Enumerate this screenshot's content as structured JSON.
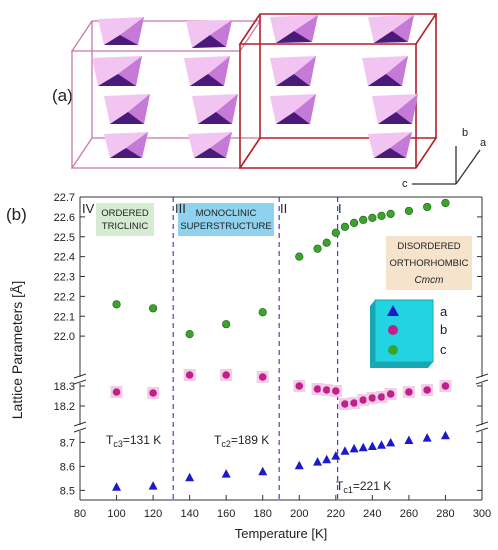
{
  "panel_a": {
    "label": "(a)",
    "axis_labels": {
      "b": "b",
      "a": "a",
      "c": "c"
    },
    "colors": {
      "box_left": "#c878a8",
      "box_right": "#b02028",
      "poly_light": "#f2c4f2",
      "poly_mid": "#c47ad6",
      "poly_dark": "#4a1a7a"
    }
  },
  "panel_b": {
    "label": "(b)"
  },
  "chart_data": {
    "type": "scatter",
    "xlabel": "Temperature [K]",
    "ylabel": "Lattice Parameters [Å]",
    "xlim": [
      80,
      300
    ],
    "x_ticks": [
      "80",
      "100",
      "120",
      "140",
      "160",
      "180",
      "200",
      "220",
      "240",
      "260",
      "280",
      "300"
    ],
    "segments": [
      {
        "id": "c",
        "ylim": [
          21.9,
          22.7
        ],
        "ticks": [
          "22.0",
          "22.1",
          "22.2",
          "22.3",
          "22.4",
          "22.5",
          "22.6",
          "22.7"
        ]
      },
      {
        "id": "b",
        "ylim": [
          18.15,
          18.42
        ],
        "ticks": [
          "18.2",
          "18.3"
        ]
      },
      {
        "id": "a",
        "ylim": [
          8.46,
          8.76
        ],
        "ticks": [
          "8.5",
          "8.6",
          "8.7"
        ]
      }
    ],
    "series": [
      {
        "name": "a",
        "color": "#1a1acc",
        "marker": "triangle",
        "segment": "a",
        "x": [
          100,
          120,
          140,
          160,
          180,
          200,
          210,
          215,
          220,
          225,
          230,
          235,
          240,
          245,
          250,
          260,
          270,
          280
        ],
        "y": [
          8.515,
          8.52,
          8.555,
          8.57,
          8.58,
          8.605,
          8.62,
          8.63,
          8.645,
          8.665,
          8.675,
          8.68,
          8.685,
          8.69,
          8.7,
          8.71,
          8.72,
          8.73
        ]
      },
      {
        "name": "b",
        "color": "#c0208a",
        "marker": "sphere",
        "segment": "b",
        "x": [
          100,
          120,
          140,
          160,
          180,
          200,
          210,
          215,
          220,
          225,
          230,
          235,
          240,
          245,
          250,
          260,
          270,
          280
        ],
        "y": [
          18.27,
          18.265,
          18.355,
          18.355,
          18.345,
          18.3,
          18.285,
          18.28,
          18.275,
          18.21,
          18.215,
          18.23,
          18.24,
          18.245,
          18.26,
          18.27,
          18.28,
          18.3
        ]
      },
      {
        "name": "c",
        "color": "#3aa52a",
        "marker": "sphere",
        "segment": "c",
        "x": [
          100,
          120,
          140,
          160,
          180,
          200,
          210,
          215,
          220,
          225,
          230,
          235,
          240,
          245,
          250,
          260,
          270,
          280
        ],
        "y": [
          22.16,
          22.14,
          22.01,
          22.06,
          22.12,
          22.4,
          22.44,
          22.47,
          22.52,
          22.55,
          22.57,
          22.585,
          22.595,
          22.605,
          22.615,
          22.63,
          22.65,
          22.67
        ]
      }
    ],
    "phase_boundaries": [
      {
        "x": 131,
        "label": "Tc3=131 K",
        "sub": "c3",
        "value": "=131 K"
      },
      {
        "x": 189,
        "label": "Tc2=189 K",
        "sub": "c2",
        "value": "=189 K"
      },
      {
        "x": 221,
        "label": "Tc1=221 K",
        "sub": "c1",
        "value": "=221 K"
      }
    ],
    "regions": [
      {
        "numeral": "IV",
        "box": [
          "ORDERED",
          "TRICLINIC"
        ],
        "box_color": "#d6ecd2"
      },
      {
        "numeral": "III",
        "box": [
          "MONOCLINIC",
          "SUPERSTRUCTURE"
        ],
        "box_color": "#8ed2ee"
      },
      {
        "numeral": "II",
        "box": [],
        "box_color": ""
      },
      {
        "numeral": "I",
        "box": [
          "DISORDERED",
          "ORTHORHOMBIC",
          "Cmcm"
        ],
        "box_color": "#f5e3cc"
      }
    ],
    "legend": {
      "position": "right-middle",
      "entries": [
        "a",
        "b",
        "c"
      ],
      "background": "#22d4e2"
    },
    "grid": false
  }
}
